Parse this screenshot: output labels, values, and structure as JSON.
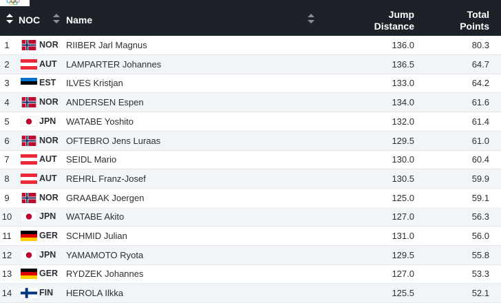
{
  "header": {
    "noc": "NOC",
    "name": "Name",
    "jump_line1": "Jump",
    "jump_line2": "Distance",
    "points_line1": "Total",
    "points_line2": "Points"
  },
  "colors": {
    "header_bg": "#1d2229",
    "row_alt_bg": "#f2f5f8",
    "text": "#2c2f33"
  },
  "flag_icons": {
    "NOR": "norway-flag-icon",
    "AUT": "austria-flag-icon",
    "EST": "estonia-flag-icon",
    "JPN": "japan-flag-icon",
    "GER": "germany-flag-icon",
    "FIN": "finland-flag-icon"
  },
  "rows": [
    {
      "rank": "1",
      "noc": "NOR",
      "name": "RIIBER Jarl Magnus",
      "jump": "136.0",
      "points": "80.3"
    },
    {
      "rank": "2",
      "noc": "AUT",
      "name": "LAMPARTER Johannes",
      "jump": "136.5",
      "points": "64.7"
    },
    {
      "rank": "3",
      "noc": "EST",
      "name": "ILVES Kristjan",
      "jump": "133.0",
      "points": "64.2"
    },
    {
      "rank": "4",
      "noc": "NOR",
      "name": "ANDERSEN Espen",
      "jump": "134.0",
      "points": "61.6"
    },
    {
      "rank": "5",
      "noc": "JPN",
      "name": "WATABE Yoshito",
      "jump": "132.0",
      "points": "61.4"
    },
    {
      "rank": "6",
      "noc": "NOR",
      "name": "OFTEBRO Jens Luraas",
      "jump": "129.5",
      "points": "61.0"
    },
    {
      "rank": "7",
      "noc": "AUT",
      "name": "SEIDL Mario",
      "jump": "130.0",
      "points": "60.4"
    },
    {
      "rank": "8",
      "noc": "AUT",
      "name": "REHRL Franz-Josef",
      "jump": "130.5",
      "points": "59.9"
    },
    {
      "rank": "9",
      "noc": "NOR",
      "name": "GRAABAK Joergen",
      "jump": "125.0",
      "points": "59.1"
    },
    {
      "rank": "10",
      "noc": "JPN",
      "name": "WATABE Akito",
      "jump": "127.0",
      "points": "56.3"
    },
    {
      "rank": "11",
      "noc": "GER",
      "name": "SCHMID Julian",
      "jump": "131.0",
      "points": "56.0"
    },
    {
      "rank": "12",
      "noc": "JPN",
      "name": "YAMAMOTO Ryota",
      "jump": "129.5",
      "points": "55.8"
    },
    {
      "rank": "13",
      "noc": "GER",
      "name": "RYDZEK Johannes",
      "jump": "127.0",
      "points": "53.3"
    },
    {
      "rank": "14",
      "noc": "FIN",
      "name": "HEROLA Ilkka",
      "jump": "125.5",
      "points": "52.1"
    }
  ]
}
